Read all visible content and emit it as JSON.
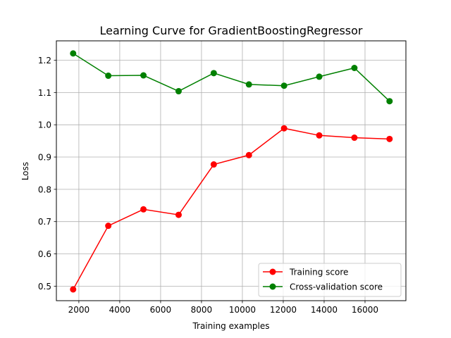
{
  "chart_data": {
    "type": "line",
    "title": "Learning Curve for GradientBoostingRegressor",
    "xlabel": "Training examples",
    "ylabel": "Loss",
    "xlim": [
      900,
      18000
    ],
    "ylim": [
      0.455,
      1.26
    ],
    "xticks": [
      2000,
      4000,
      6000,
      8000,
      10000,
      12000,
      14000,
      16000
    ],
    "yticks": [
      0.5,
      0.6,
      0.7,
      0.8,
      0.9,
      1.0,
      1.1,
      1.2
    ],
    "ytick_labels": [
      "0.5",
      "0.6",
      "0.7",
      "0.8",
      "0.9",
      "1.0",
      "1.1",
      "1.2"
    ],
    "grid": true,
    "legend_position": "lower-right",
    "x": [
      1720,
      3440,
      5160,
      6880,
      8600,
      10320,
      12040,
      13760,
      15480,
      17200
    ],
    "series": [
      {
        "name": "Training score",
        "color": "#ff0000",
        "values": [
          0.49,
          0.687,
          0.738,
          0.721,
          0.877,
          0.906,
          0.989,
          0.967,
          0.96,
          0.956
        ]
      },
      {
        "name": "Cross-validation score",
        "color": "#008000",
        "values": [
          1.221,
          1.152,
          1.153,
          1.104,
          1.16,
          1.125,
          1.121,
          1.149,
          1.176,
          1.073
        ]
      }
    ]
  }
}
